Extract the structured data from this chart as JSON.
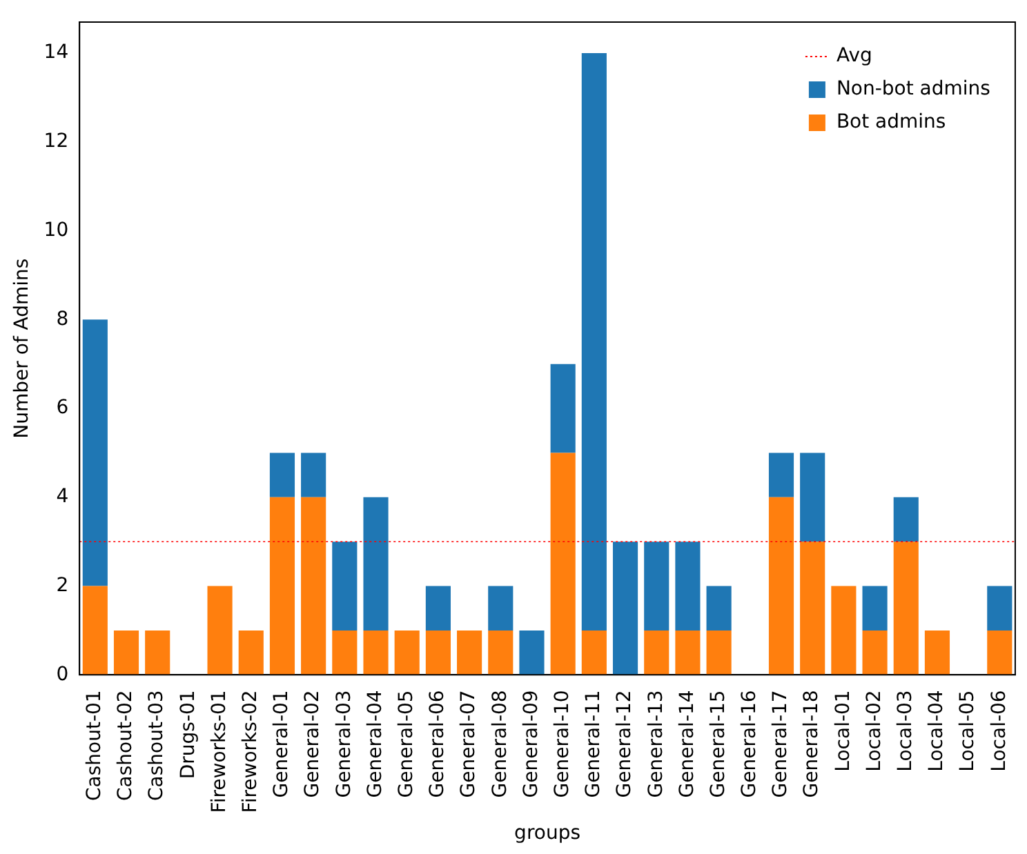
{
  "chart_data": {
    "type": "bar",
    "stacked": true,
    "xlabel": "groups",
    "ylabel": "Number of Admins",
    "categories": [
      "Cashout-01",
      "Cashout-02",
      "Cashout-03",
      "Drugs-01",
      "Fireworks-01",
      "Fireworks-02",
      "General-01",
      "General-02",
      "General-03",
      "General-04",
      "General-05",
      "General-06",
      "General-07",
      "General-08",
      "General-09",
      "General-10",
      "General-11",
      "General-12",
      "General-13",
      "General-14",
      "General-15",
      "General-16",
      "General-17",
      "General-18",
      "Local-01",
      "Local-02",
      "Local-03",
      "Local-04",
      "Local-05",
      "Local-06"
    ],
    "series": [
      {
        "name": "Bot admins",
        "color": "#ff7f0e",
        "values": [
          2,
          1,
          1,
          0,
          2,
          1,
          4,
          4,
          1,
          1,
          1,
          1,
          1,
          1,
          0,
          5,
          1,
          0,
          1,
          1,
          1,
          0,
          4,
          3,
          2,
          1,
          3,
          1,
          0,
          1
        ]
      },
      {
        "name": "Non-bot admins",
        "color": "#1f77b4",
        "values": [
          6,
          0,
          0,
          0,
          0,
          0,
          1,
          1,
          2,
          3,
          0,
          1,
          0,
          1,
          1,
          2,
          13,
          3,
          2,
          2,
          1,
          0,
          1,
          2,
          0,
          1,
          1,
          0,
          0,
          1
        ]
      }
    ],
    "ylim": [
      0,
      14.7
    ],
    "yticks": [
      0,
      2,
      4,
      6,
      8,
      10,
      12,
      14
    ],
    "grid": false,
    "legend": "top right",
    "ref_lines": [
      {
        "axis": "y",
        "value": 3,
        "label": "Avg",
        "color": "#ff0000",
        "line_style": "dotted"
      }
    ]
  }
}
